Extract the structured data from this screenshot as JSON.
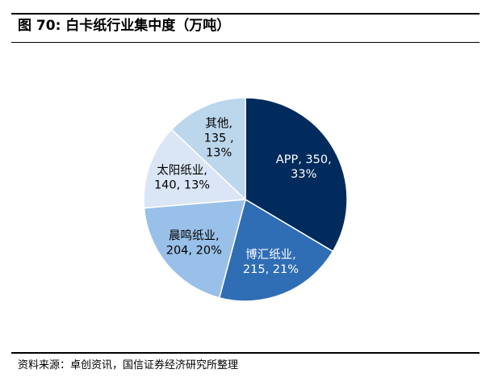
{
  "title": "图 70:  白卡纸行业集中度（万吨）",
  "source": "资料来源：卓创资讯，国信证券经济研究所整理",
  "chart_data": {
    "type": "pie",
    "title": "白卡纸行业集中度（万吨）",
    "start_angle_deg": 0,
    "direction": "clockwise",
    "slices": [
      {
        "label": "APP",
        "value": 350,
        "percent": "33%",
        "color": "#002b5c",
        "text_color": "#ffffff",
        "lines": [
          "APP, 350,",
          "33%"
        ]
      },
      {
        "label": "博汇纸业",
        "value": 215,
        "percent": "21%",
        "color": "#2f6db5",
        "text_color": "#ffffff",
        "lines": [
          "博汇纸业,",
          "215, 21%"
        ]
      },
      {
        "label": "晨鸣纸业",
        "value": 204,
        "percent": "20%",
        "color": "#99c0e8",
        "text_color": "#000000",
        "lines": [
          "晨鸣纸业,",
          "204, 20%"
        ]
      },
      {
        "label": "太阳纸业",
        "value": 140,
        "percent": "13%",
        "color": "#dae6f5",
        "text_color": "#000000",
        "lines": [
          "太阳纸业,",
          "140, 13%"
        ]
      },
      {
        "label": "其他",
        "value": 135,
        "percent": "13%",
        "color": "#bcd6eb",
        "text_color": "#000000",
        "lines": [
          "其他,",
          "135 ,",
          "13%"
        ]
      }
    ]
  }
}
